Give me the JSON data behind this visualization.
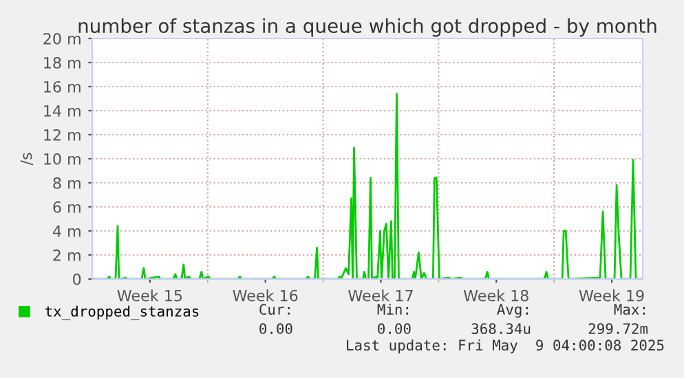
{
  "chart_data": {
    "type": "line",
    "title": "number of stanzas in a queue which got dropped - by month",
    "ylabel": "/s",
    "x": [
      "2025-04-07T00:00",
      "2025-04-07T02:00",
      "2025-04-07T22:00",
      "2025-04-08T01:00",
      "2025-04-08T03:00",
      "2025-04-08T10:00",
      "2025-04-08T13:00",
      "2025-04-08T15:00",
      "2025-04-09T01:00",
      "2025-04-09T03:00",
      "2025-04-10T00:00",
      "2025-04-10T03:00",
      "2025-04-10T05:00",
      "2025-04-11T01:00",
      "2025-04-11T03:00",
      "2025-04-11T22:00",
      "2025-04-12T01:00",
      "2025-04-12T03:00",
      "2025-04-12T10:00",
      "2025-04-12T13:00",
      "2025-04-12T15:00",
      "2025-04-12T21:00",
      "2025-04-12T23:00",
      "2025-04-13T12:00",
      "2025-04-13T15:00",
      "2025-04-13T17:00",
      "2025-04-14T01:00",
      "2025-04-14T04:00",
      "2025-04-15T20:00",
      "2025-04-15T23:00",
      "2025-04-16T01:00",
      "2025-04-17T22:00",
      "2025-04-18T01:00",
      "2025-04-18T03:00",
      "2025-04-19T23:00",
      "2025-04-20T02:00",
      "2025-04-20T04:00",
      "2025-04-20T12:00",
      "2025-04-20T15:00",
      "2025-04-20T17:00",
      "2025-04-21T22:00",
      "2025-04-22T00:00",
      "2025-04-22T02:00",
      "2025-04-22T09:00",
      "2025-04-22T13:00",
      "2025-04-22T17:00",
      "2025-04-22T19:00",
      "2025-04-22T21:00",
      "2025-04-23T01:00",
      "2025-04-23T10:00",
      "2025-04-23T12:00",
      "2025-04-23T14:00",
      "2025-04-23T18:00",
      "2025-04-23T21:00",
      "2025-04-23T23:00",
      "2025-04-24T05:00",
      "2025-04-24T07:00",
      "2025-04-24T11:00",
      "2025-04-24T13:00",
      "2025-04-24T17:00",
      "2025-04-24T20:00",
      "2025-04-24T23:00",
      "2025-04-25T03:00",
      "2025-04-25T05:00",
      "2025-04-25T08:00",
      "2025-04-25T11:00",
      "2025-04-25T14:00",
      "2025-04-26T10:00",
      "2025-04-26T12:00",
      "2025-04-26T14:00",
      "2025-04-26T19:00",
      "2025-04-26T23:00",
      "2025-04-27T03:00",
      "2025-04-27T06:00",
      "2025-04-27T16:00",
      "2025-04-27T18:00",
      "2025-04-27T21:00",
      "2025-04-28T01:00",
      "2025-04-28T15:00",
      "2025-04-28T18:00",
      "2025-04-29T09:00",
      "2025-04-29T11:00",
      "2025-04-30T20:00",
      "2025-04-30T23:00",
      "2025-05-01T01:00",
      "2025-05-04T10:00",
      "2025-05-04T13:00",
      "2025-05-04T15:00",
      "2025-05-05T12:00",
      "2025-05-05T14:00",
      "2025-05-05T17:00",
      "2025-05-05T21:00",
      "2025-05-07T19:00",
      "2025-05-07T23:00",
      "2025-05-08T03:00",
      "2025-05-08T16:00",
      "2025-05-08T19:00",
      "2025-05-08T22:00",
      "2025-05-09T02:00",
      "2025-05-09T15:00",
      "2025-05-09T19:00",
      "2025-05-09T23:00",
      "2025-05-10T09:00"
    ],
    "series": [
      {
        "name": "tx_dropped_stanzas",
        "color": "#00cc00",
        "values": [
          0.1,
          0,
          0,
          0.2,
          0,
          0,
          4.4,
          0,
          0.1,
          0,
          0,
          0.9,
          0,
          0.2,
          0,
          0,
          0.4,
          0,
          0,
          1.2,
          0,
          0.2,
          0,
          0,
          0.6,
          0,
          0.2,
          0,
          0,
          0.2,
          0,
          0,
          0.2,
          0,
          0,
          0.2,
          0,
          0,
          2.6,
          0,
          0,
          0.2,
          0,
          0.9,
          0.4,
          6.7,
          0,
          10.9,
          0,
          0,
          0.6,
          0,
          0,
          8.4,
          0,
          0.2,
          0,
          4.0,
          0,
          4.0,
          4.6,
          0,
          4.8,
          0,
          0,
          15.4,
          0,
          0,
          0.6,
          0,
          2.2,
          0,
          0.5,
          0,
          0,
          8.4,
          8.4,
          0,
          0.1,
          0,
          0.1,
          0,
          0,
          0.6,
          0,
          0,
          0.6,
          0,
          0,
          4.0,
          4.0,
          0,
          0.1,
          5.6,
          0,
          0,
          7.8,
          3.8,
          0,
          0,
          9.9,
          0,
          0
        ]
      }
    ],
    "xlim": [
      "2025-04-07T00:00",
      "2025-05-10T09:00"
    ],
    "xticks": [
      {
        "value": "2025-04-10T12:00",
        "label": "Week 15"
      },
      {
        "value": "2025-04-14T00:00",
        "label": null
      },
      {
        "value": "2025-04-17T12:00",
        "label": "Week 16"
      },
      {
        "value": "2025-04-21T00:00",
        "label": null
      },
      {
        "value": "2025-04-24T12:00",
        "label": "Week 17"
      },
      {
        "value": "2025-04-28T00:00",
        "label": null
      },
      {
        "value": "2025-05-01T12:00",
        "label": "Week 18"
      },
      {
        "value": "2025-05-05T00:00",
        "label": null
      },
      {
        "value": "2025-05-08T12:00",
        "label": "Week 19"
      }
    ],
    "ylim": [
      0,
      20
    ],
    "yticks": [
      0,
      {
        "value": 2,
        "label": "2 m"
      },
      {
        "value": 4,
        "label": "4 m"
      },
      {
        "value": 6,
        "label": "6 m"
      },
      {
        "value": 8,
        "label": "8 m"
      },
      {
        "value": 10,
        "label": "10 m"
      },
      {
        "value": 12,
        "label": "12 m"
      },
      {
        "value": 14,
        "label": "14 m"
      },
      {
        "value": 16,
        "label": "16 m"
      },
      {
        "value": 18,
        "label": "18 m"
      },
      {
        "value": 20,
        "label": "20 m"
      }
    ],
    "grid": true,
    "legend": "bottom left",
    "marker": "none",
    "line_style": "solid",
    "annotations": [
      "Cur:",
      "Min:",
      "Avg:",
      "Max:",
      "0.00",
      "0.00",
      "368.34u",
      "299.72m",
      "Last update: Fri May  9 04:00:08 2025"
    ]
  }
}
